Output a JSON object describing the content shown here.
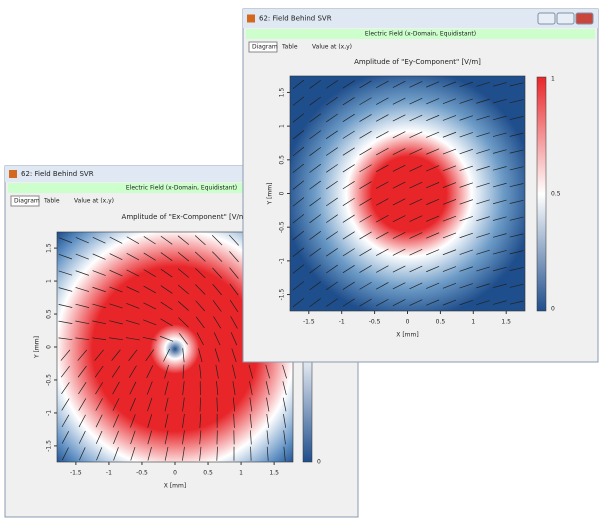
{
  "windows": [
    {
      "title": "62: Field Behind SVR",
      "banner": "Electric Field (x-Domain, Equidistant)",
      "tabs": [
        "Diagram",
        "Table",
        "Value at (x,y)"
      ],
      "plot": {
        "title": "Amplitude of \"Ex-Component\"  [V/m]",
        "x_label": "X [mm]",
        "y_label": "Y [mm]",
        "x_ticks": [
          "-1.5",
          "-1",
          "-0.5",
          "0",
          "0.5",
          "1",
          "1.5"
        ],
        "y_ticks": [
          "1.5",
          "1",
          "0.5",
          "0",
          "-0.5",
          "-1",
          "-1.5"
        ],
        "colorbar_ticks": [
          "0"
        ]
      }
    },
    {
      "title": "62: Field Behind SVR",
      "banner": "Electric Field (x-Domain, Equidistant)",
      "tabs": [
        "Diagram",
        "Table",
        "Value at (x,y)"
      ],
      "plot": {
        "title": "Amplitude of \"Ey-Component\"  [V/m]",
        "x_label": "X [mm]",
        "y_label": "Y [mm]",
        "x_ticks": [
          "-1.5",
          "-1",
          "-0.5",
          "0",
          "0.5",
          "1",
          "1.5"
        ],
        "y_ticks": [
          "1.5",
          "1",
          "0.5",
          "0",
          "-0.5",
          "-1",
          "-1.5"
        ],
        "colorbar_ticks": [
          "1",
          "0.5",
          "0"
        ]
      }
    }
  ]
}
